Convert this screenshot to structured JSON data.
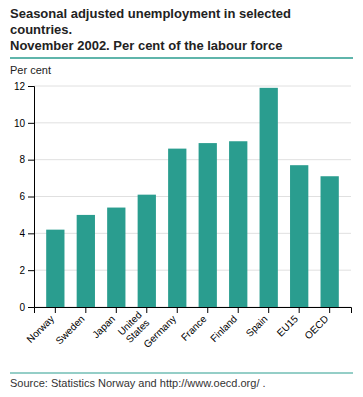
{
  "chart_data": {
    "type": "bar",
    "title": "Seasonal adjusted unemployment in selected countries.",
    "subtitle": "November 2002. Per cent of the labour force",
    "ylabel": "Per cent",
    "annotations": [
      "Source: Statistics Norway and http://www.oecd.org/ ."
    ],
    "categories": [
      "Norway",
      "Sweden",
      "Japan",
      "United\nStates",
      "Germany",
      "France",
      "Finland",
      "Spain",
      "EU15",
      "OECD"
    ],
    "values": [
      4.2,
      5.0,
      5.4,
      6.1,
      8.6,
      8.9,
      9.0,
      11.9,
      7.7,
      7.1
    ],
    "color": "#2a9d8f",
    "ylim": [
      0,
      12
    ],
    "yticks": [
      0,
      2,
      4,
      6,
      8,
      10,
      12
    ],
    "grid": true
  }
}
